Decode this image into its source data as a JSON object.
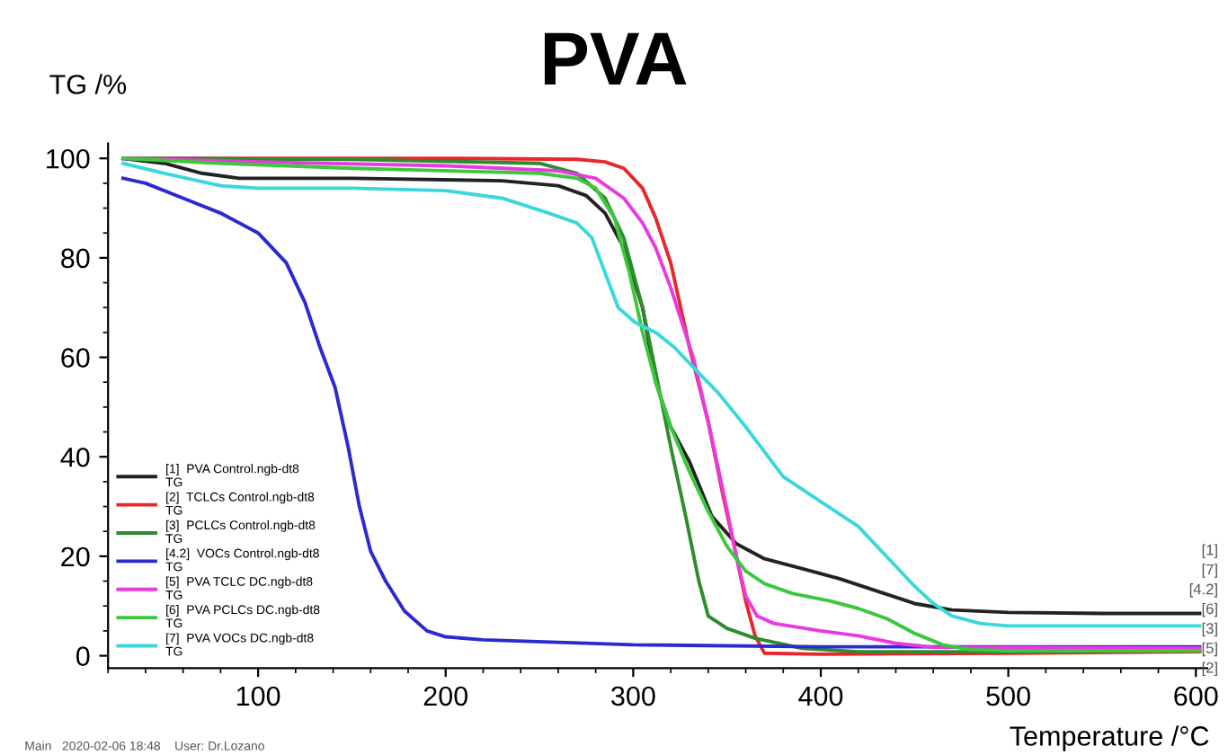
{
  "chart_data": {
    "type": "line",
    "title": "PVA",
    "xlabel": "Temperature /°C",
    "ylabel": "TG /%",
    "xlim": [
      20,
      606
    ],
    "xticks": [
      100,
      200,
      300,
      400,
      500,
      600
    ],
    "ylim": [
      -2.5,
      103
    ],
    "yticks": [
      0,
      20,
      40,
      60,
      80,
      100
    ],
    "grid": false,
    "legend": "bottom left",
    "line_style": "solid",
    "marker": "none",
    "series": [
      {
        "name": "[1]  PVA Control.ngb-dt8\nTG",
        "color": "#222222",
        "x": [
          28,
          50,
          70,
          90,
          150,
          230,
          260,
          275,
          285,
          295,
          305,
          312,
          320,
          330,
          342,
          355,
          370,
          390,
          410,
          430,
          450,
          470,
          500,
          550,
          602
        ],
        "values": [
          100,
          99,
          97,
          96,
          96,
          95.5,
          94.5,
          92.5,
          89,
          82,
          70,
          55,
          46,
          39,
          28,
          22.5,
          19.5,
          17.5,
          15.5,
          13,
          10.5,
          9.2,
          8.7,
          8.5,
          8.5
        ]
      },
      {
        "name": "[2]  TCLCs Control.ngb-dt8\nTG",
        "color": "#e8262b",
        "x": [
          28,
          200,
          270,
          285,
          295,
          305,
          312,
          320,
          330,
          340,
          348,
          355,
          360,
          365,
          370,
          400,
          500,
          602
        ],
        "values": [
          100,
          100,
          99.8,
          99.3,
          98,
          94,
          88,
          79,
          62,
          47,
          32,
          20,
          11,
          4,
          0.5,
          0.3,
          0.5,
          0.8
        ]
      },
      {
        "name": "[3]  PCLCs Control.ngb-dt8\nTG",
        "color": "#2e8b2e",
        "x": [
          28,
          150,
          250,
          270,
          285,
          295,
          305,
          312,
          320,
          328,
          335,
          340,
          350,
          365,
          390,
          420,
          500,
          602
        ],
        "values": [
          100,
          99.8,
          99,
          97,
          92,
          84,
          70,
          57,
          42,
          28,
          15,
          8,
          5.5,
          3.5,
          1.5,
          0.8,
          0.8,
          1
        ]
      },
      {
        "name": "[4.2]  VOCs Control.ngb-dt8\nTG",
        "color": "#2a2ad0",
        "x": [
          28,
          40,
          60,
          80,
          100,
          115,
          125,
          133,
          141,
          148,
          154,
          160,
          168,
          178,
          190,
          200,
          220,
          300,
          400,
          602
        ],
        "values": [
          96,
          95,
          92,
          89,
          85,
          79,
          71,
          62,
          54,
          42,
          30,
          21,
          15,
          9,
          5,
          3.8,
          3.2,
          2.2,
          1.8,
          1.8
        ]
      },
      {
        "name": "[5]  PVA TCLC DC.ngb-dt8\nTG",
        "color": "#e83ae0",
        "x": [
          28,
          100,
          200,
          260,
          280,
          295,
          305,
          312,
          320,
          332,
          340,
          348,
          355,
          360,
          366,
          375,
          400,
          420,
          440,
          460,
          602
        ],
        "values": [
          100,
          99.3,
          98.5,
          97.5,
          96,
          92,
          87,
          82,
          74,
          60,
          47,
          33,
          20,
          12,
          8,
          6.5,
          5,
          4,
          2.5,
          1.7,
          1.5
        ]
      },
      {
        "name": "[6]  PVA PCLCs DC.ngb-dt8\nTG",
        "color": "#3cc83c",
        "x": [
          28,
          80,
          150,
          250,
          270,
          280,
          290,
          298,
          305,
          312,
          320,
          330,
          340,
          350,
          360,
          370,
          385,
          405,
          420,
          435,
          450,
          465,
          480,
          500,
          602
        ],
        "values": [
          100,
          99,
          98,
          97,
          96,
          94,
          88,
          77,
          65,
          55,
          46,
          37,
          29,
          22,
          17,
          14.5,
          12.5,
          11,
          9.5,
          7.5,
          4.5,
          2.2,
          1.2,
          1,
          1
        ]
      },
      {
        "name": "[7]  PVA VOCs DC.ngb-dt8\nTG",
        "color": "#3ad8dc",
        "x": [
          28,
          50,
          80,
          100,
          150,
          200,
          230,
          255,
          270,
          278,
          285,
          292,
          301,
          312,
          322,
          332,
          345,
          360,
          370,
          380,
          400,
          420,
          430,
          440,
          450,
          460,
          470,
          485,
          500,
          602
        ],
        "values": [
          99,
          97,
          94.5,
          94,
          94,
          93.5,
          92,
          89,
          87,
          84,
          77,
          70,
          67,
          65,
          62,
          58,
          53,
          46,
          41,
          36,
          31,
          26,
          22,
          18,
          14,
          10.5,
          8,
          6.5,
          6,
          6
        ]
      }
    ],
    "annotations": [
      "[1]",
      "[7]",
      "[4.2]",
      "[6]",
      "[3]",
      "[5]",
      "[2]",
      "Main   2020-02-06 18:48    User: Dr.Lozano"
    ]
  }
}
